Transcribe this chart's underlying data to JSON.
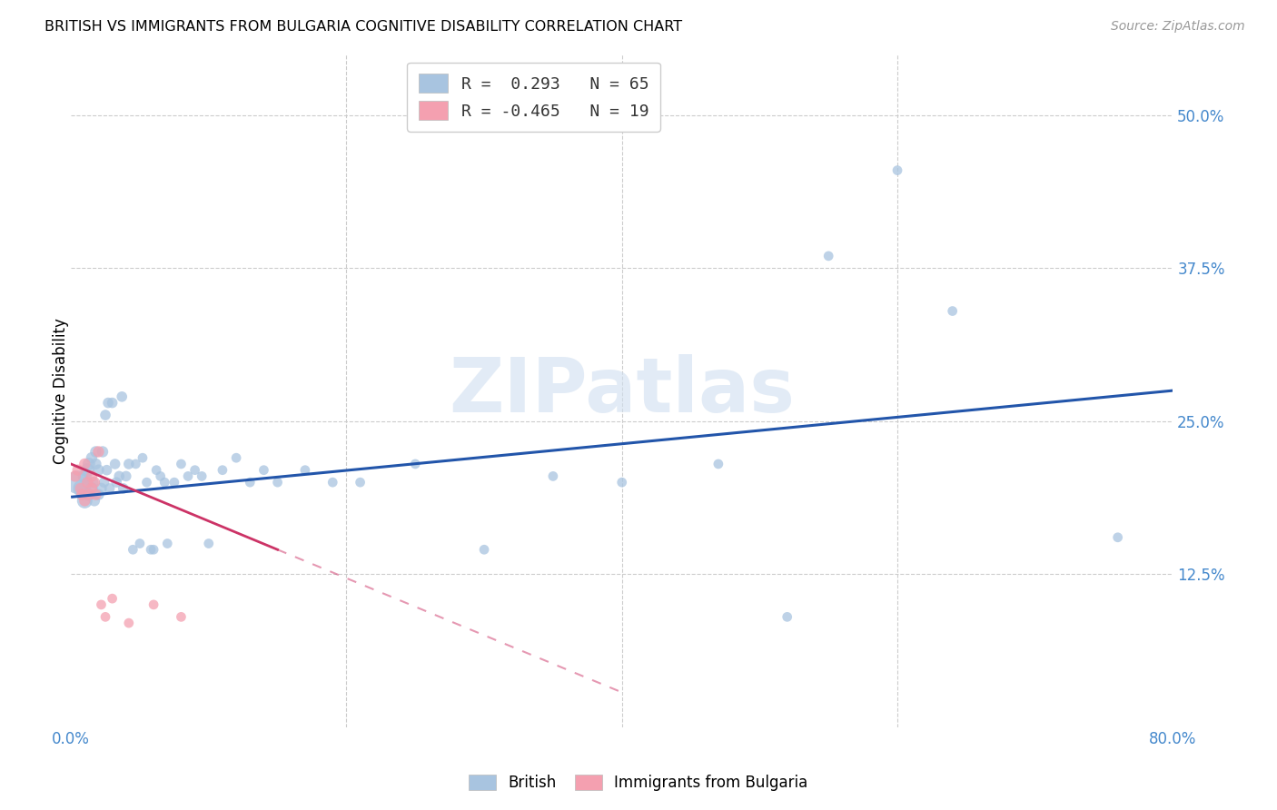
{
  "title": "BRITISH VS IMMIGRANTS FROM BULGARIA COGNITIVE DISABILITY CORRELATION CHART",
  "source": "Source: ZipAtlas.com",
  "ylabel": "Cognitive Disability",
  "right_yticks": [
    "50.0%",
    "37.5%",
    "25.0%",
    "12.5%"
  ],
  "right_ytick_vals": [
    0.5,
    0.375,
    0.25,
    0.125
  ],
  "xlim": [
    0.0,
    0.8
  ],
  "ylim": [
    0.0,
    0.55
  ],
  "british_color": "#a8c4e0",
  "bulgaria_color": "#f4a0b0",
  "british_line_color": "#2255aa",
  "bulgaria_line_color": "#cc3366",
  "british_R": 0.293,
  "british_N": 65,
  "bulgaria_R": -0.465,
  "bulgaria_N": 19,
  "brit_line_x0": 0.0,
  "brit_line_y0": 0.188,
  "brit_line_x1": 0.8,
  "brit_line_y1": 0.275,
  "bulg_line_x0": 0.0,
  "bulg_line_y0": 0.215,
  "bulg_line_x1": 0.15,
  "bulg_line_y1": 0.145,
  "british_scatter_x": [
    0.005,
    0.008,
    0.01,
    0.01,
    0.012,
    0.013,
    0.013,
    0.015,
    0.015,
    0.016,
    0.017,
    0.018,
    0.018,
    0.02,
    0.02,
    0.022,
    0.023,
    0.024,
    0.025,
    0.026,
    0.027,
    0.028,
    0.03,
    0.032,
    0.033,
    0.035,
    0.037,
    0.038,
    0.04,
    0.042,
    0.045,
    0.047,
    0.05,
    0.052,
    0.055,
    0.058,
    0.06,
    0.062,
    0.065,
    0.068,
    0.07,
    0.075,
    0.08,
    0.085,
    0.09,
    0.095,
    0.1,
    0.11,
    0.12,
    0.13,
    0.14,
    0.15,
    0.17,
    0.19,
    0.21,
    0.25,
    0.3,
    0.35,
    0.4,
    0.47,
    0.52,
    0.55,
    0.6,
    0.64,
    0.76
  ],
  "british_scatter_y": [
    0.2,
    0.195,
    0.185,
    0.205,
    0.21,
    0.19,
    0.215,
    0.195,
    0.22,
    0.2,
    0.185,
    0.215,
    0.225,
    0.19,
    0.21,
    0.195,
    0.225,
    0.2,
    0.255,
    0.21,
    0.265,
    0.195,
    0.265,
    0.215,
    0.2,
    0.205,
    0.27,
    0.195,
    0.205,
    0.215,
    0.145,
    0.215,
    0.15,
    0.22,
    0.2,
    0.145,
    0.145,
    0.21,
    0.205,
    0.2,
    0.15,
    0.2,
    0.215,
    0.205,
    0.21,
    0.205,
    0.15,
    0.21,
    0.22,
    0.2,
    0.21,
    0.2,
    0.21,
    0.2,
    0.2,
    0.215,
    0.145,
    0.205,
    0.2,
    0.215,
    0.09,
    0.385,
    0.455,
    0.34,
    0.155
  ],
  "british_scatter_sizes": [
    350,
    200,
    150,
    120,
    120,
    100,
    100,
    100,
    80,
    80,
    80,
    80,
    80,
    80,
    80,
    80,
    80,
    70,
    70,
    70,
    70,
    70,
    70,
    70,
    70,
    70,
    70,
    70,
    70,
    70,
    60,
    60,
    60,
    60,
    60,
    60,
    60,
    60,
    60,
    60,
    60,
    60,
    60,
    60,
    60,
    60,
    60,
    60,
    60,
    60,
    60,
    60,
    60,
    60,
    60,
    60,
    60,
    60,
    60,
    60,
    60,
    60,
    60,
    60,
    60
  ],
  "bulgaria_scatter_x": [
    0.003,
    0.005,
    0.007,
    0.008,
    0.01,
    0.01,
    0.012,
    0.013,
    0.015,
    0.015,
    0.017,
    0.018,
    0.02,
    0.022,
    0.025,
    0.03,
    0.042,
    0.06,
    0.08
  ],
  "bulgaria_scatter_y": [
    0.205,
    0.21,
    0.195,
    0.19,
    0.215,
    0.185,
    0.2,
    0.19,
    0.205,
    0.195,
    0.2,
    0.19,
    0.225,
    0.1,
    0.09,
    0.105,
    0.085,
    0.1,
    0.09
  ],
  "bulgaria_scatter_sizes": [
    80,
    80,
    80,
    80,
    80,
    80,
    80,
    80,
    80,
    80,
    80,
    80,
    80,
    60,
    60,
    60,
    60,
    60,
    60
  ],
  "watermark": "ZIPatlas",
  "grid_color": "#cccccc",
  "background_color": "#ffffff"
}
